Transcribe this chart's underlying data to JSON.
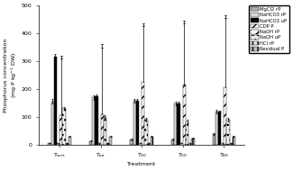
{
  "categories": [
    "T$_{wet}$",
    "T$_{air}$",
    "T$_{30}$",
    "T$_{50}$",
    "T$_{85}$"
  ],
  "series_order": [
    "MgCl2 rP",
    "NaHCO3 rP",
    "NaHCO3 uP",
    "CDP P",
    "NaOH rP",
    "NaOH uP",
    "HCl rP",
    "Residual P"
  ],
  "values": {
    "MgCl2 rP": [
      5,
      12,
      18,
      18,
      38
    ],
    "NaHCO3 rP": [
      155,
      170,
      158,
      148,
      118
    ],
    "NaHCO3 uP": [
      315,
      172,
      158,
      148,
      118
    ],
    "CDP P": [
      4,
      4,
      5,
      5,
      4
    ],
    "NaOH rP": [
      320,
      360,
      435,
      445,
      465
    ],
    "NaOH uP": [
      130,
      100,
      88,
      83,
      88
    ],
    "HCl rP": [
      4,
      4,
      4,
      4,
      4
    ],
    "Residual P": [
      28,
      28,
      28,
      22,
      28
    ]
  },
  "errors": {
    "MgCl2 rP": [
      1,
      2,
      2,
      2,
      4
    ],
    "NaHCO3 rP": [
      8,
      8,
      6,
      6,
      6
    ],
    "NaHCO3 uP": [
      12,
      8,
      6,
      6,
      4
    ],
    "CDP P": [
      1,
      1,
      1,
      1,
      1
    ],
    "NaOH rP": [
      12,
      12,
      10,
      10,
      10
    ],
    "NaOH uP": [
      6,
      6,
      6,
      6,
      6
    ],
    "HCl rP": [
      1,
      1,
      1,
      1,
      1
    ],
    "Residual P": [
      2,
      2,
      2,
      2,
      2
    ]
  },
  "colors": {
    "MgCl2 rP": "#b0b0b0",
    "NaHCO3 rP": "#d8d8d8",
    "NaHCO3 uP": "#000000",
    "CDP P": "#ffffff",
    "NaOH rP": "#ffffff",
    "NaOH uP": "#f0f0f0",
    "HCl rP": "#e8e8e8",
    "Residual P": "#c0c0c0"
  },
  "hatches": {
    "MgCl2 rP": "",
    "NaHCO3 rP": "",
    "NaHCO3 uP": "",
    "CDP P": "///",
    "NaOH rP": "///",
    "NaOH uP": "...",
    "HCl rP": "|||",
    "Residual P": "|||"
  },
  "naoh_bar_values": [
    105,
    110,
    225,
    215,
    205
  ],
  "ylabel": "Phosphorus concentration\n(mg P kg$^{-1}$ DW)",
  "xlabel": "Treatment",
  "ylim": [
    0,
    500
  ],
  "yticks": [
    0,
    100,
    200,
    300,
    400,
    500
  ],
  "bar_width": 0.07,
  "legend_fontsize": 3.8,
  "axis_fontsize": 4.5,
  "tick_fontsize": 4.5
}
